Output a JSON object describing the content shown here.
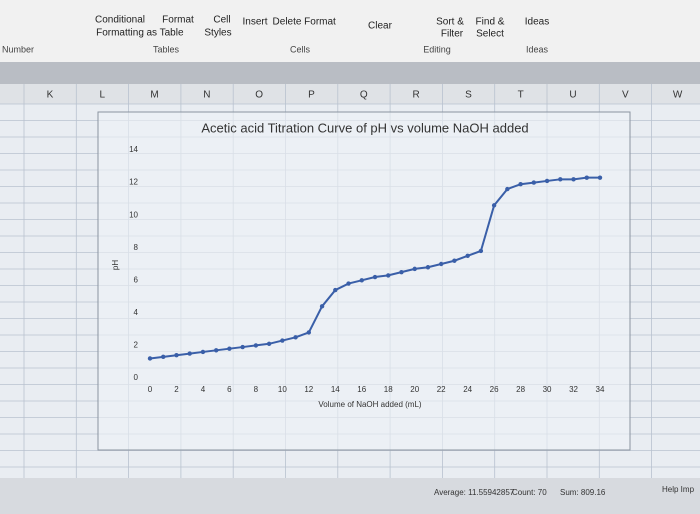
{
  "ribbon": {
    "buttons": [
      "Conditional",
      "Formatting",
      "Format",
      "as Table",
      "Cell",
      "Styles",
      "Insert",
      "Delete",
      "Format",
      "Clear",
      "Sort &",
      "Filter",
      "Find &",
      "Select",
      "Ideas"
    ],
    "groups": [
      "Number",
      "Tables",
      "Cells",
      "Editing",
      "Ideas"
    ]
  },
  "columns": [
    "K",
    "L",
    "M",
    "N",
    "O",
    "P",
    "Q",
    "R",
    "S",
    "T",
    "U",
    "V",
    "W"
  ],
  "status_bar": {
    "average": "Average: 11.55942857",
    "count": "Count: 70",
    "sum": "Sum: 809.16",
    "help": "Help Imp"
  },
  "chart_data": {
    "type": "line",
    "title": "Acetic acid Titration Curve of pH vs volume NaOH added",
    "x_label": "Volume of NaOH added (mL)",
    "y_label": "pH",
    "x": [
      0,
      1,
      2,
      3,
      4,
      5,
      6,
      7,
      8,
      9,
      10,
      11,
      12,
      13,
      14,
      15,
      16,
      17,
      18,
      19,
      20,
      21,
      22,
      23,
      24,
      25,
      26,
      27,
      28,
      29,
      30,
      31,
      32,
      33,
      34
    ],
    "series": [
      {
        "name": "pH",
        "color": "#3a5fa8",
        "values": [
          1.2,
          1.3,
          1.4,
          1.5,
          1.6,
          1.7,
          1.8,
          1.9,
          2.0,
          2.1,
          2.3,
          2.5,
          2.8,
          4.4,
          5.4,
          5.8,
          6.0,
          6.2,
          6.3,
          6.5,
          6.7,
          6.8,
          7.0,
          7.2,
          7.5,
          7.8,
          10.6,
          11.6,
          11.9,
          12.0,
          12.1,
          12.2,
          12.2,
          12.3,
          12.3
        ]
      }
    ],
    "xlim": [
      0,
      34
    ],
    "xticks": [
      0,
      2,
      4,
      6,
      8,
      10,
      12,
      14,
      16,
      18,
      20,
      22,
      24,
      26,
      28,
      30,
      32,
      34
    ],
    "ylim": [
      0,
      14
    ],
    "yticks": [
      0,
      2,
      4,
      6,
      8,
      10,
      12,
      14
    ],
    "grid": false,
    "markers": true
  }
}
